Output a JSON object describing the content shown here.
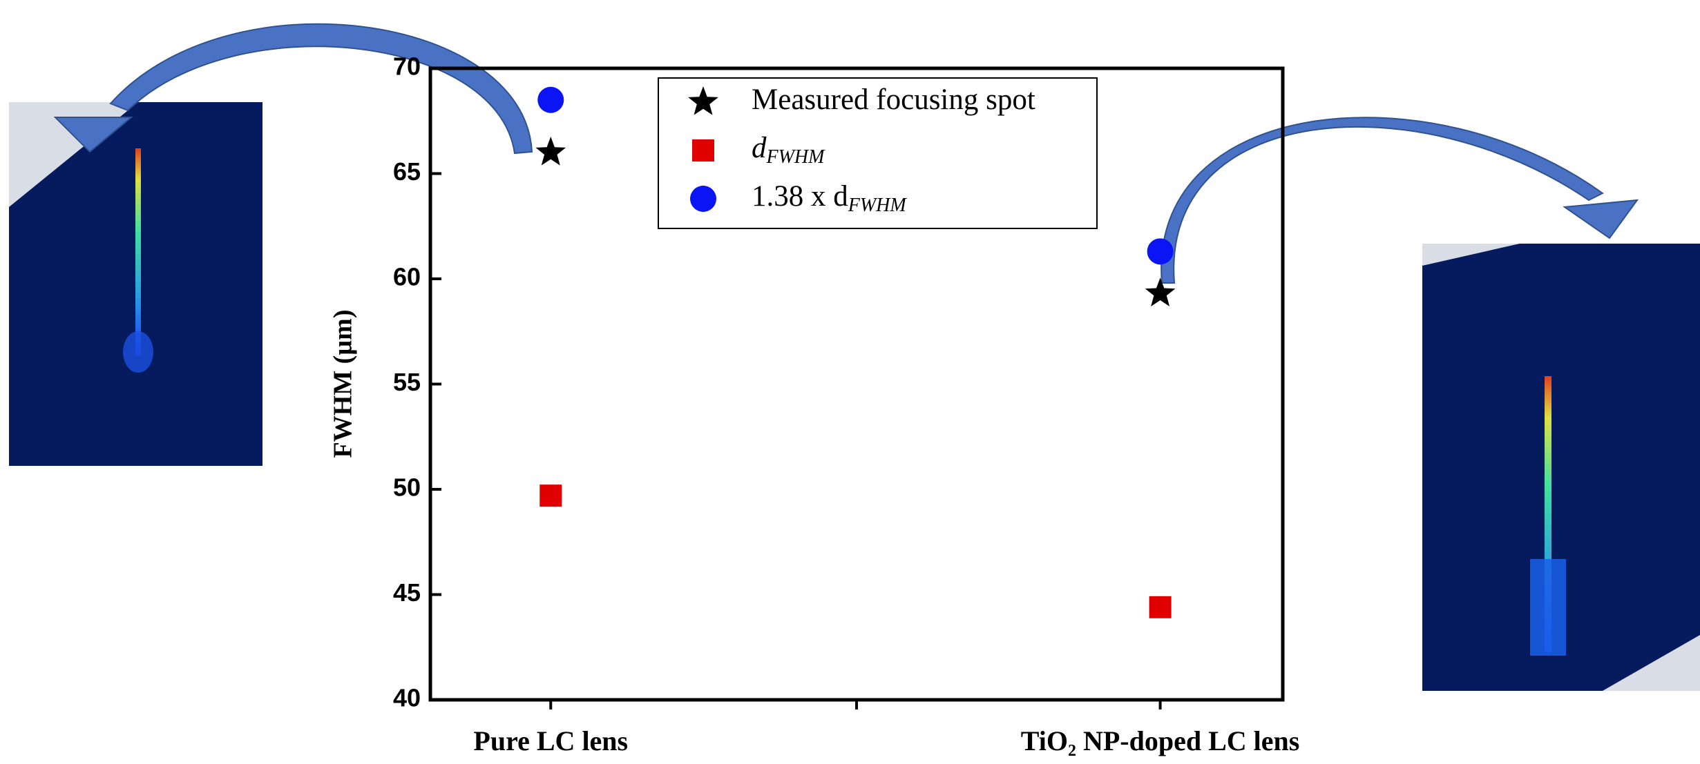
{
  "chart_data": {
    "type": "scatter",
    "y_label": "FWHM (µm)",
    "categories": [
      "Pure LC lens",
      "TiO₂ NP-doped LC lens"
    ],
    "ylim": [
      40,
      70
    ],
    "yticks": [
      40,
      45,
      50,
      55,
      60,
      65,
      70
    ],
    "series": [
      {
        "name": "Measured focusing spot",
        "marker": "star",
        "color": "#000000",
        "values": [
          66,
          59.3
        ]
      },
      {
        "name": "d",
        "subscript": "FWHM",
        "marker": "square",
        "color": "#e00000",
        "values": [
          49.7,
          44.4
        ]
      },
      {
        "name": "1.38 x d",
        "subscript": "FWHM",
        "marker": "circle",
        "color": "#0a14f5",
        "values": [
          68.5,
          61.3
        ]
      }
    ]
  }
}
